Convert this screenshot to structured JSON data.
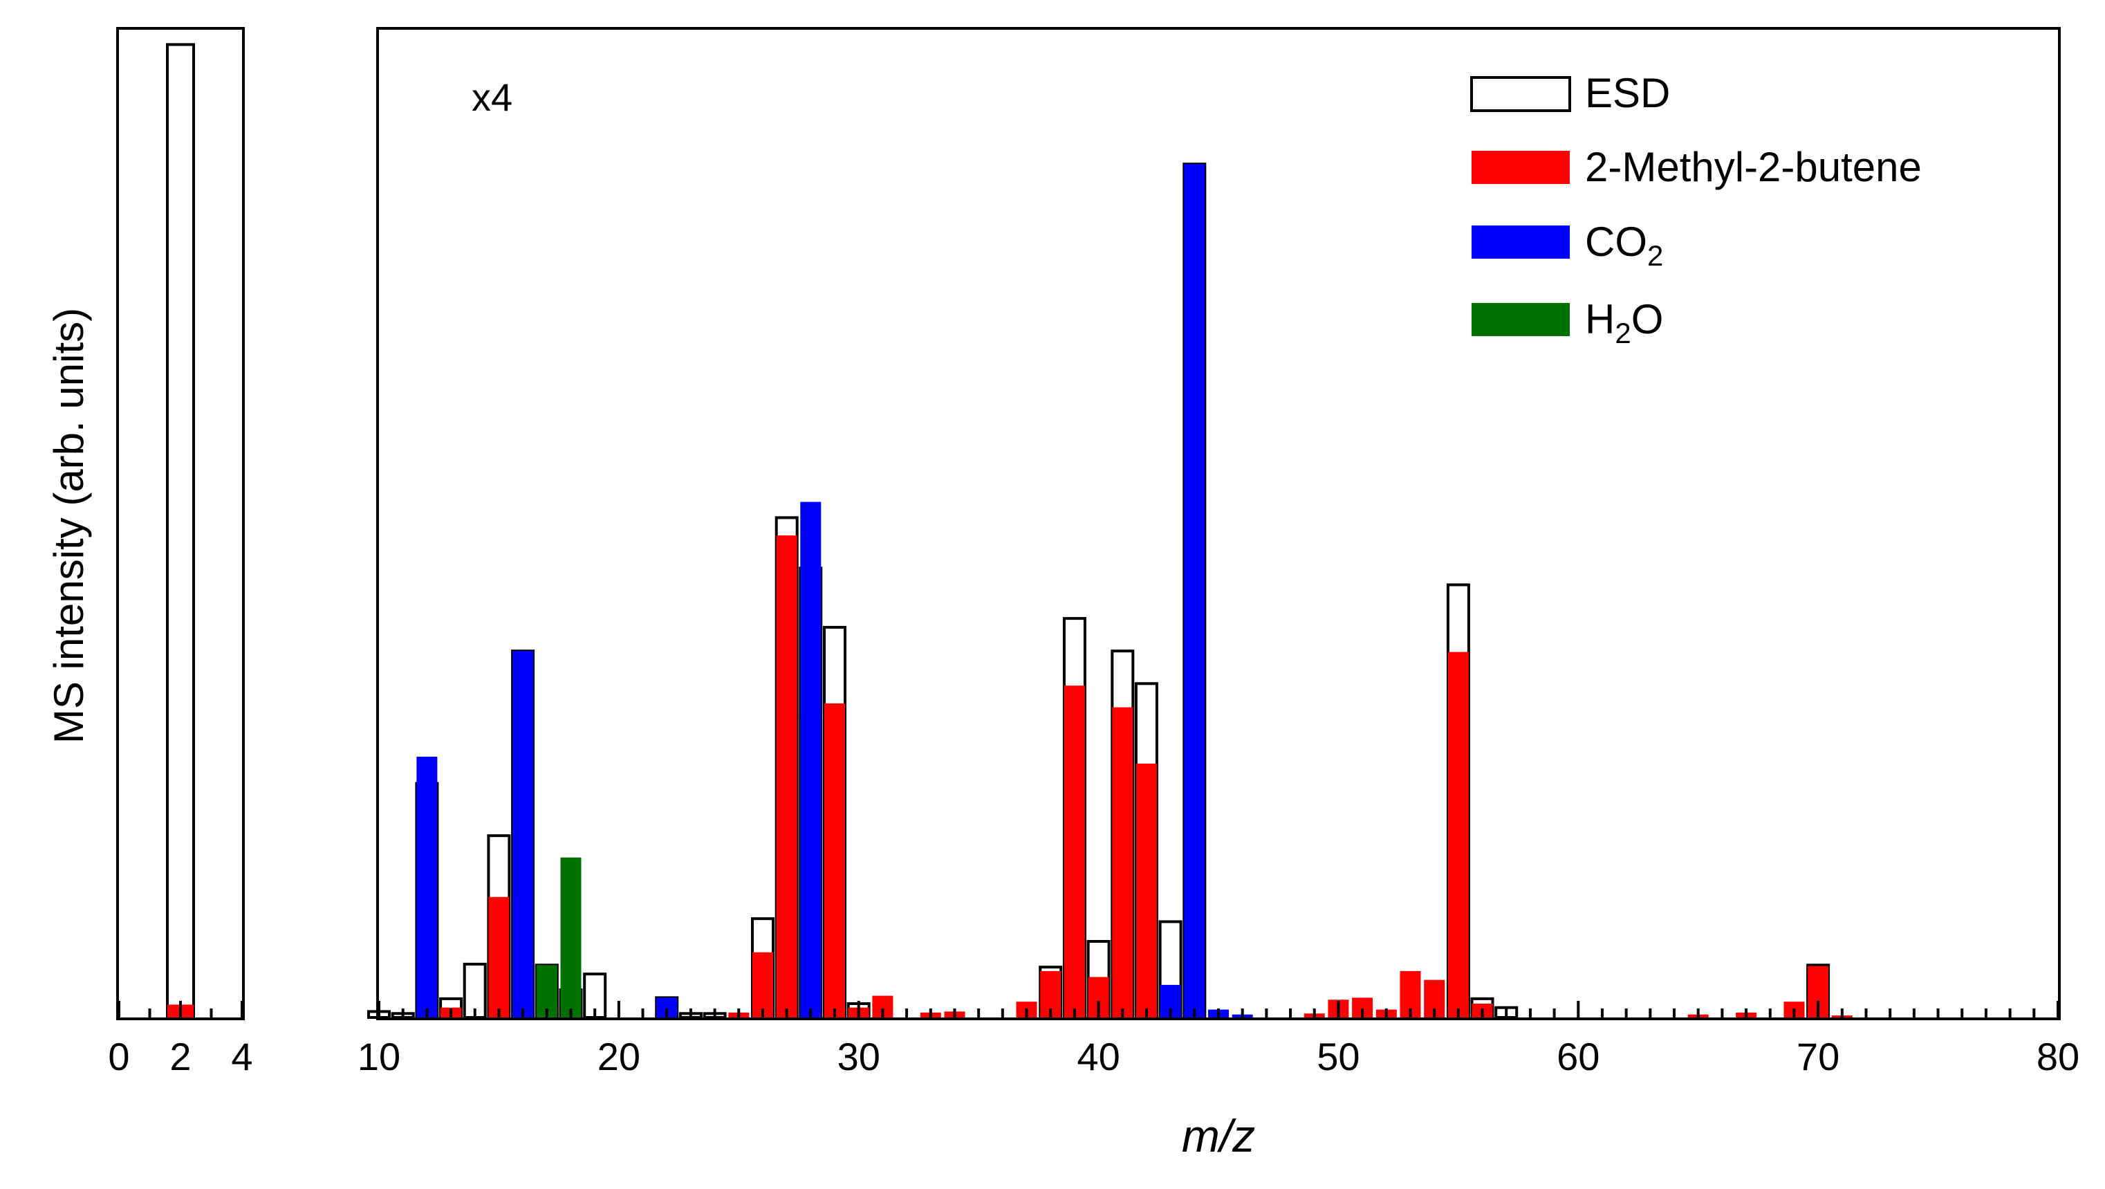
{
  "chart_data": [
    {
      "type": "bar",
      "panel": "left",
      "xlim": [
        0,
        4
      ],
      "ylim": [
        0,
        100
      ],
      "x_ticks": [
        "0",
        "2",
        "4"
      ],
      "ylabel": "MS intensity (arb. units)",
      "series": [
        {
          "name": "ESD",
          "style": "outline",
          "points": [
            {
              "x": 2,
              "y": 98.5
            }
          ]
        },
        {
          "name": "2-Methyl-2-butene",
          "color": "#ff0000",
          "points": [
            {
              "x": 2,
              "y": 1.3
            }
          ]
        }
      ]
    },
    {
      "type": "bar",
      "panel": "right",
      "annotation": "x4",
      "xlim": [
        10,
        80
      ],
      "ylim": [
        0,
        100
      ],
      "x_ticks": [
        "10",
        "20",
        "30",
        "40",
        "50",
        "60",
        "70",
        "80"
      ],
      "xlabel": "m/z",
      "legend": [
        {
          "label": "ESD",
          "color": "#ffffff",
          "outline": true
        },
        {
          "label": "2-Methyl-2-butene",
          "color": "#ff0000"
        },
        {
          "label": "CO",
          "sub": "2",
          "rest": "",
          "color": "#0000ff"
        },
        {
          "label": "H",
          "sub": "2",
          "rest": "O",
          "color": "#007000"
        }
      ],
      "series": [
        {
          "name": "ESD",
          "style": "outline",
          "points": [
            {
              "x": 10,
              "y": 0.6
            },
            {
              "x": 11,
              "y": 0.4
            },
            {
              "x": 12,
              "y": 23.7
            },
            {
              "x": 13,
              "y": 1.9
            },
            {
              "x": 14,
              "y": 5.4
            },
            {
              "x": 15,
              "y": 18.4
            },
            {
              "x": 16,
              "y": 37.1
            },
            {
              "x": 17,
              "y": 5.3
            },
            {
              "x": 18,
              "y": 2.8
            },
            {
              "x": 19,
              "y": 4.4
            },
            {
              "x": 22,
              "y": 2.0
            },
            {
              "x": 23,
              "y": 0.4
            },
            {
              "x": 24,
              "y": 0.4
            },
            {
              "x": 26,
              "y": 10.0
            },
            {
              "x": 27,
              "y": 50.6
            },
            {
              "x": 28,
              "y": 45.5
            },
            {
              "x": 29,
              "y": 39.5
            },
            {
              "x": 30,
              "y": 1.4
            },
            {
              "x": 38,
              "y": 5.1
            },
            {
              "x": 39,
              "y": 40.4
            },
            {
              "x": 40,
              "y": 7.7
            },
            {
              "x": 41,
              "y": 37.1
            },
            {
              "x": 42,
              "y": 33.8
            },
            {
              "x": 43,
              "y": 9.7
            },
            {
              "x": 44,
              "y": 86.4
            },
            {
              "x": 55,
              "y": 43.8
            },
            {
              "x": 56,
              "y": 1.9
            },
            {
              "x": 57,
              "y": 1.0
            },
            {
              "x": 70,
              "y": 5.3
            }
          ]
        },
        {
          "name": "2-Methyl-2-butene",
          "color": "#ff0000",
          "points": [
            {
              "x": 13,
              "y": 1.0
            },
            {
              "x": 15,
              "y": 12.2
            },
            {
              "x": 16,
              "y": 1.6
            },
            {
              "x": 17,
              "y": 1.1
            },
            {
              "x": 18,
              "y": 2.2
            },
            {
              "x": 25,
              "y": 0.5
            },
            {
              "x": 26,
              "y": 6.6
            },
            {
              "x": 27,
              "y": 48.8
            },
            {
              "x": 28,
              "y": 30.3
            },
            {
              "x": 29,
              "y": 31.8
            },
            {
              "x": 30,
              "y": 1.0
            },
            {
              "x": 31,
              "y": 2.2
            },
            {
              "x": 33,
              "y": 0.5
            },
            {
              "x": 34,
              "y": 0.6
            },
            {
              "x": 37,
              "y": 1.6
            },
            {
              "x": 38,
              "y": 4.7
            },
            {
              "x": 39,
              "y": 33.6
            },
            {
              "x": 40,
              "y": 4.1
            },
            {
              "x": 41,
              "y": 31.4
            },
            {
              "x": 42,
              "y": 25.7
            },
            {
              "x": 43,
              "y": 1.7
            },
            {
              "x": 44,
              "y": 0.4
            },
            {
              "x": 49,
              "y": 0.4
            },
            {
              "x": 50,
              "y": 1.8
            },
            {
              "x": 51,
              "y": 2.0
            },
            {
              "x": 52,
              "y": 0.8
            },
            {
              "x": 53,
              "y": 4.7
            },
            {
              "x": 54,
              "y": 3.8
            },
            {
              "x": 55,
              "y": 37.0
            },
            {
              "x": 56,
              "y": 1.4
            },
            {
              "x": 65,
              "y": 0.3
            },
            {
              "x": 67,
              "y": 0.5
            },
            {
              "x": 69,
              "y": 1.6
            },
            {
              "x": 70,
              "y": 5.2
            },
            {
              "x": 71,
              "y": 0.2
            }
          ]
        },
        {
          "name": "CO2",
          "color": "#0000ff",
          "points": [
            {
              "x": 12,
              "y": 26.4
            },
            {
              "x": 16,
              "y": 37.1
            },
            {
              "x": 22,
              "y": 2.0
            },
            {
              "x": 28,
              "y": 52.2
            },
            {
              "x": 43,
              "y": 3.3
            },
            {
              "x": 44,
              "y": 86.4
            },
            {
              "x": 45,
              "y": 0.8
            },
            {
              "x": 46,
              "y": 0.3
            }
          ]
        },
        {
          "name": "H2O",
          "color": "#007000",
          "points": [
            {
              "x": 17,
              "y": 5.3
            },
            {
              "x": 18,
              "y": 16.2
            }
          ]
        }
      ]
    }
  ]
}
